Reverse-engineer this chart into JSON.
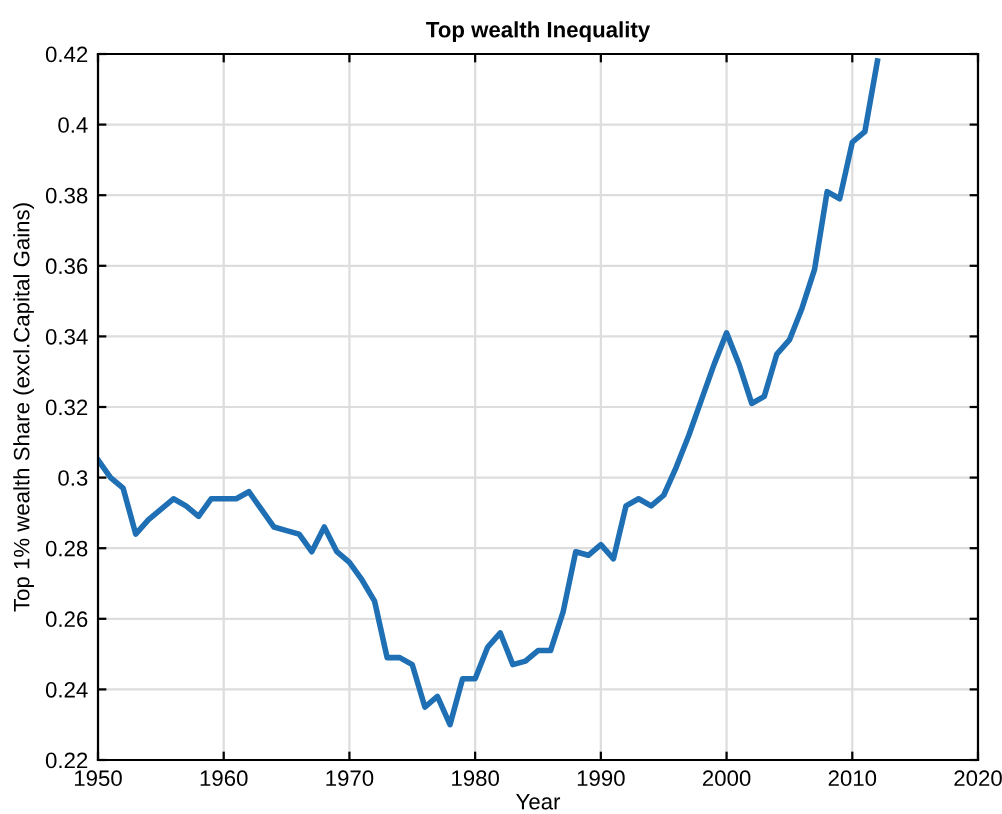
{
  "chart_data": {
    "type": "line",
    "title": "Top wealth Inequality",
    "xlabel": "Year",
    "ylabel": "Top 1% wealth Share (excl.Capital Gains)",
    "x": [
      1950,
      1951,
      1952,
      1953,
      1954,
      1955,
      1956,
      1957,
      1958,
      1959,
      1960,
      1961,
      1962,
      1963,
      1964,
      1965,
      1966,
      1967,
      1968,
      1969,
      1970,
      1971,
      1972,
      1973,
      1974,
      1975,
      1976,
      1977,
      1978,
      1979,
      1980,
      1981,
      1982,
      1983,
      1984,
      1985,
      1986,
      1987,
      1988,
      1989,
      1990,
      1991,
      1992,
      1993,
      1994,
      1995,
      1996,
      1997,
      1998,
      1999,
      2000,
      2001,
      2002,
      2003,
      2004,
      2005,
      2006,
      2007,
      2008,
      2009,
      2010,
      2011,
      2012
    ],
    "series": [
      {
        "color": "#1f6fb4",
        "values": [
          0.305,
          0.3,
          0.297,
          0.284,
          0.288,
          0.291,
          0.294,
          0.292,
          0.289,
          0.294,
          0.294,
          0.294,
          0.296,
          0.291,
          0.286,
          0.285,
          0.284,
          0.279,
          0.286,
          0.279,
          0.276,
          0.271,
          0.265,
          0.249,
          0.249,
          0.247,
          0.235,
          0.238,
          0.23,
          0.243,
          0.243,
          0.252,
          0.256,
          0.247,
          0.248,
          0.251,
          0.251,
          0.262,
          0.279,
          0.278,
          0.281,
          0.277,
          0.292,
          0.294,
          0.292,
          0.295,
          0.303,
          0.312,
          0.322,
          0.332,
          0.341,
          0.332,
          0.321,
          0.323,
          0.335,
          0.339,
          0.348,
          0.359,
          0.381,
          0.379,
          0.395,
          0.398,
          0.418
        ]
      }
    ],
    "xlim": [
      1950,
      2020
    ],
    "xticks": [
      1950,
      1960,
      1970,
      1980,
      1990,
      2000,
      2010,
      2020
    ],
    "ylim": [
      0.22,
      0.42
    ],
    "yticks": [
      0.22,
      0.24,
      0.26,
      0.28,
      0.3,
      0.32,
      0.34,
      0.36,
      0.38,
      0.4,
      0.42
    ],
    "grid": true,
    "line_style": "solid"
  }
}
